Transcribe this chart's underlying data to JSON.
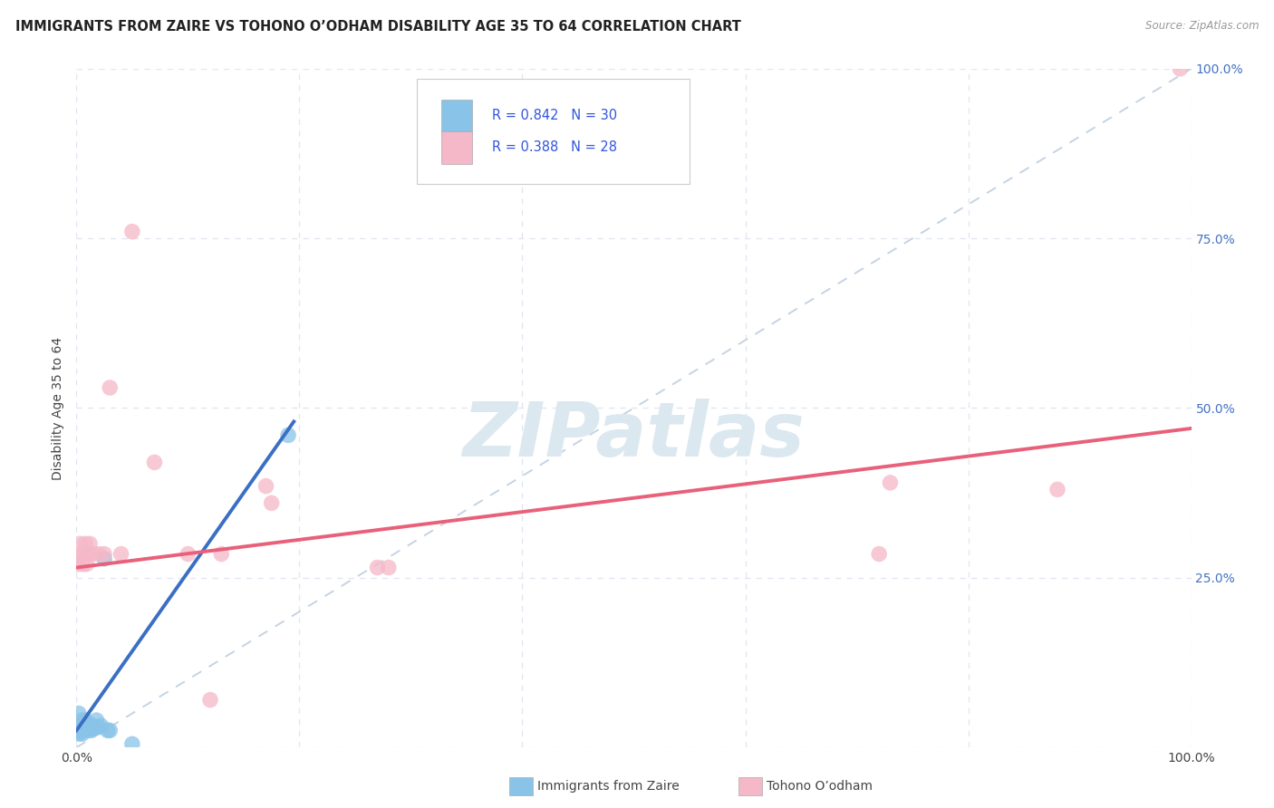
{
  "title": "IMMIGRANTS FROM ZAIRE VS TOHONO O’ODHAM DISABILITY AGE 35 TO 64 CORRELATION CHART",
  "source": "Source: ZipAtlas.com",
  "ylabel": "Disability Age 35 to 64",
  "legend_r1": "R = 0.842",
  "legend_n1": "N = 30",
  "legend_r2": "R = 0.388",
  "legend_n2": "N = 28",
  "legend_label1": "Immigrants from Zaire",
  "legend_label2": "Tohono O’odham",
  "blue_scatter_color": "#89c4e8",
  "pink_scatter_color": "#f5b8c8",
  "blue_line_color": "#3a6fc4",
  "pink_line_color": "#e8607a",
  "diag_color": "#c0cfe0",
  "grid_color": "#e0e5f0",
  "bg_color": "#ffffff",
  "text_color": "#444444",
  "legend_text_color": "#3355dd",
  "right_tick_color": "#4472c4",
  "source_color": "#999999",
  "blue_scatter": [
    [
      0.001,
      0.032
    ],
    [
      0.001,
      0.025
    ],
    [
      0.002,
      0.02
    ],
    [
      0.002,
      0.05
    ],
    [
      0.003,
      0.03
    ],
    [
      0.003,
      0.025
    ],
    [
      0.004,
      0.025
    ],
    [
      0.005,
      0.02
    ],
    [
      0.005,
      0.04
    ],
    [
      0.006,
      0.03
    ],
    [
      0.007,
      0.025
    ],
    [
      0.007,
      0.035
    ],
    [
      0.008,
      0.04
    ],
    [
      0.009,
      0.028
    ],
    [
      0.01,
      0.025
    ],
    [
      0.01,
      0.03
    ],
    [
      0.011,
      0.035
    ],
    [
      0.012,
      0.028
    ],
    [
      0.013,
      0.025
    ],
    [
      0.014,
      0.03
    ],
    [
      0.015,
      0.032
    ],
    [
      0.016,
      0.028
    ],
    [
      0.018,
      0.04
    ],
    [
      0.02,
      0.03
    ],
    [
      0.022,
      0.032
    ],
    [
      0.025,
      0.278
    ],
    [
      0.028,
      0.025
    ],
    [
      0.03,
      0.025
    ],
    [
      0.05,
      0.005
    ],
    [
      0.19,
      0.46
    ]
  ],
  "pink_scatter": [
    [
      0.001,
      0.27
    ],
    [
      0.002,
      0.28
    ],
    [
      0.003,
      0.3
    ],
    [
      0.005,
      0.285
    ],
    [
      0.006,
      0.27
    ],
    [
      0.008,
      0.3
    ],
    [
      0.009,
      0.27
    ],
    [
      0.01,
      0.285
    ],
    [
      0.011,
      0.285
    ],
    [
      0.012,
      0.3
    ],
    [
      0.015,
      0.285
    ],
    [
      0.02,
      0.285
    ],
    [
      0.025,
      0.285
    ],
    [
      0.03,
      0.53
    ],
    [
      0.04,
      0.285
    ],
    [
      0.05,
      0.76
    ],
    [
      0.07,
      0.42
    ],
    [
      0.1,
      0.285
    ],
    [
      0.12,
      0.07
    ],
    [
      0.13,
      0.285
    ],
    [
      0.17,
      0.385
    ],
    [
      0.175,
      0.36
    ],
    [
      0.27,
      0.265
    ],
    [
      0.28,
      0.265
    ],
    [
      0.72,
      0.285
    ],
    [
      0.73,
      0.39
    ],
    [
      0.88,
      0.38
    ],
    [
      0.99,
      1.0
    ]
  ],
  "blue_trend_x": [
    0.0,
    0.195
  ],
  "blue_trend_y": [
    0.025,
    0.48
  ],
  "pink_trend_x": [
    0.0,
    1.0
  ],
  "pink_trend_y": [
    0.265,
    0.47
  ],
  "xlim": [
    0.0,
    1.0
  ],
  "ylim": [
    0.0,
    1.0
  ],
  "yticks": [
    0.0,
    0.25,
    0.5,
    0.75,
    1.0
  ],
  "right_ytick_labels": [
    "",
    "25.0%",
    "50.0%",
    "75.0%",
    "100.0%"
  ],
  "xtick_positions": [
    0.0,
    0.2,
    0.4,
    0.6,
    0.8,
    1.0
  ],
  "xtick_labels": [
    "0.0%",
    "",
    "",
    "",
    "",
    "100.0%"
  ],
  "watermark_text": "ZIPatlas",
  "watermark_color": "#dce8f0"
}
